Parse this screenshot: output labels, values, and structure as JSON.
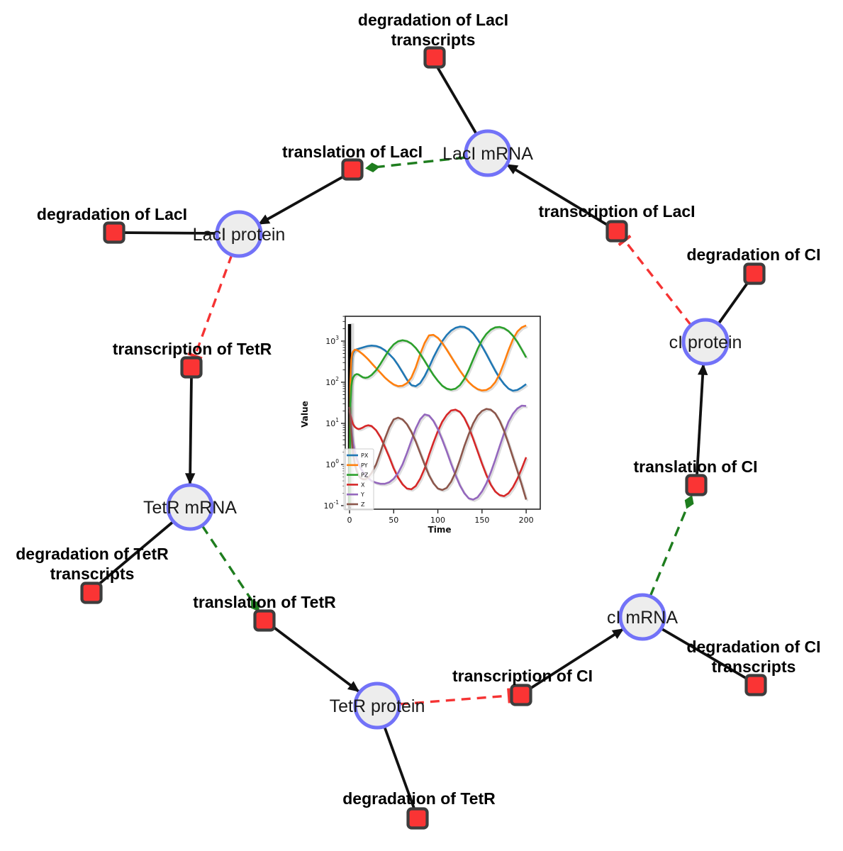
{
  "diagram": {
    "species_labels": {
      "laci_mrna": "LacI mRNA",
      "laci_protein": "LacI protein",
      "tetr_mrna": "TetR mRNA",
      "tetr_protein": "TetR protein",
      "ci_mrna": "cI mRNA",
      "ci_protein": "cI protein"
    },
    "reaction_labels": {
      "deg_laci_transcripts_1": "degradation of LacI",
      "deg_laci_transcripts_2": "transcripts",
      "translation_laci": "translation of LacI",
      "transcription_laci": "transcription of LacI",
      "deg_laci": "degradation of LacI",
      "deg_ci": "degradation of CI",
      "transcription_tetr": "transcription of TetR",
      "deg_tetr_transcripts_1": "degradation of TetR",
      "deg_tetr_transcripts_2": "transcripts",
      "translation_tetr": "translation of TetR",
      "deg_tetr": "degradation of TetR",
      "transcription_ci": "transcription of CI",
      "deg_ci_transcripts_1": "degradation of CI",
      "deg_ci_transcripts_2": "transcripts",
      "translation_ci": "translation of CI"
    },
    "edges": [
      {
        "from": "LacI mRNA",
        "to": "degradation of LacI transcripts",
        "type": "consumption"
      },
      {
        "from": "LacI mRNA",
        "to": "translation of LacI",
        "type": "modifier"
      },
      {
        "from": "translation of LacI",
        "to": "LacI protein",
        "type": "production"
      },
      {
        "from": "LacI protein",
        "to": "degradation of LacI",
        "type": "consumption"
      },
      {
        "from": "LacI protein",
        "to": "transcription of TetR",
        "type": "inhibition"
      },
      {
        "from": "transcription of TetR",
        "to": "TetR mRNA",
        "type": "production"
      },
      {
        "from": "TetR mRNA",
        "to": "degradation of TetR transcripts",
        "type": "consumption"
      },
      {
        "from": "TetR mRNA",
        "to": "translation of TetR",
        "type": "modifier"
      },
      {
        "from": "translation of TetR",
        "to": "TetR protein",
        "type": "production"
      },
      {
        "from": "TetR protein",
        "to": "degradation of TetR",
        "type": "consumption"
      },
      {
        "from": "TetR protein",
        "to": "transcription of CI",
        "type": "inhibition"
      },
      {
        "from": "transcription of CI",
        "to": "cI mRNA",
        "type": "production"
      },
      {
        "from": "cI mRNA",
        "to": "degradation of CI transcripts",
        "type": "consumption"
      },
      {
        "from": "cI mRNA",
        "to": "translation of CI",
        "type": "modifier"
      },
      {
        "from": "translation of CI",
        "to": "cI protein",
        "type": "production"
      },
      {
        "from": "cI protein",
        "to": "degradation of CI",
        "type": "consumption"
      },
      {
        "from": "cI protein",
        "to": "transcription of LacI",
        "type": "inhibition"
      },
      {
        "from": "transcription of LacI",
        "to": "LacI mRNA",
        "type": "production"
      }
    ],
    "colors": {
      "species_fill": "#ededed",
      "species_stroke": "#7272f8",
      "reaction_fill": "#fa3434",
      "reaction_stroke": "#3d3d3d",
      "edge_black": "#111111",
      "edge_green": "#1e7d1e",
      "edge_red": "#f53333"
    }
  },
  "chart_data": {
    "type": "line",
    "title": "",
    "xlabel": "Time",
    "ylabel": "Value",
    "x_ticks": [
      0,
      50,
      100,
      150,
      200
    ],
    "y_scale": "log",
    "y_tick_exponents": [
      -1,
      0,
      1,
      2,
      3
    ],
    "xlim": [
      -5,
      216
    ],
    "ylim": [
      0.08,
      4000
    ],
    "legend_position": "lower left",
    "grid": false,
    "event_line_x": 0,
    "x": [
      0,
      1,
      2,
      3,
      4,
      6,
      8,
      10,
      12,
      15,
      18,
      21,
      25,
      30,
      35,
      40,
      45,
      50,
      55,
      60,
      65,
      70,
      75,
      80,
      85,
      90,
      95,
      100,
      105,
      110,
      115,
      120,
      125,
      130,
      135,
      140,
      145,
      150,
      155,
      160,
      165,
      170,
      175,
      180,
      185,
      190,
      195,
      200
    ],
    "series": [
      {
        "name": "PX",
        "color": "#1f77b4",
        "values": [
          0.1,
          30,
          200,
          420,
          520,
          600,
          630,
          650,
          670,
          700,
          730,
          760,
          780,
          760,
          700,
          600,
          480,
          370,
          260,
          175,
          115,
          85,
          80,
          95,
          140,
          230,
          400,
          650,
          1000,
          1400,
          1800,
          2100,
          2250,
          2200,
          1950,
          1550,
          1100,
          750,
          480,
          300,
          190,
          125,
          90,
          70,
          62,
          65,
          75,
          90
        ]
      },
      {
        "name": "PY",
        "color": "#ff7f0e",
        "values": [
          0.1,
          100,
          350,
          500,
          560,
          620,
          610,
          580,
          540,
          480,
          420,
          360,
          290,
          220,
          170,
          130,
          105,
          88,
          80,
          82,
          95,
          130,
          230,
          480,
          900,
          1380,
          1420,
          1200,
          900,
          620,
          420,
          280,
          190,
          135,
          100,
          80,
          68,
          63,
          65,
          75,
          100,
          160,
          300,
          600,
          1100,
          1700,
          2150,
          2400
        ]
      },
      {
        "name": "PZ",
        "color": "#2ca02c",
        "values": [
          0.1,
          30,
          80,
          110,
          130,
          150,
          158,
          155,
          145,
          132,
          128,
          132,
          150,
          195,
          280,
          420,
          620,
          830,
          990,
          1050,
          1000,
          870,
          680,
          490,
          330,
          220,
          150,
          108,
          82,
          70,
          66,
          70,
          85,
          120,
          200,
          360,
          640,
          1050,
          1500,
          1900,
          2150,
          2200,
          2050,
          1750,
          1350,
          950,
          620,
          400
        ]
      },
      {
        "name": "X",
        "color": "#d62728",
        "values": [
          20,
          16,
          13,
          11,
          9.5,
          8.2,
          7.6,
          7.3,
          7.4,
          7.9,
          8.6,
          9.0,
          8.6,
          6.8,
          4.6,
          2.7,
          1.5,
          0.8,
          0.48,
          0.33,
          0.26,
          0.25,
          0.3,
          0.45,
          0.8,
          1.7,
          3.4,
          6.5,
          11,
          16,
          20.5,
          21.5,
          19,
          13.5,
          8,
          4.2,
          2.1,
          1.05,
          0.55,
          0.32,
          0.22,
          0.18,
          0.17,
          0.2,
          0.28,
          0.45,
          0.8,
          1.5
        ]
      },
      {
        "name": "Y",
        "color": "#9467bd",
        "values": [
          25,
          14,
          8,
          5,
          3.4,
          2.0,
          1.4,
          1.05,
          0.85,
          0.66,
          0.55,
          0.47,
          0.4,
          0.36,
          0.34,
          0.34,
          0.37,
          0.45,
          0.62,
          1.0,
          1.9,
          3.8,
          7.5,
          12.5,
          16.5,
          15.5,
          11.5,
          7.2,
          4.0,
          2.1,
          1.05,
          0.55,
          0.31,
          0.2,
          0.15,
          0.14,
          0.16,
          0.22,
          0.35,
          0.65,
          1.3,
          2.8,
          5.8,
          11,
          17,
          23,
          27,
          26.5
        ]
      },
      {
        "name": "Z",
        "color": "#8c564b",
        "values": [
          25,
          12,
          6,
          3.2,
          1.9,
          1.0,
          0.7,
          0.55,
          0.48,
          0.44,
          0.44,
          0.48,
          0.62,
          1.0,
          2.0,
          4.2,
          8.0,
          12.5,
          13.8,
          12.5,
          9.5,
          6.2,
          3.6,
          1.9,
          1.0,
          0.55,
          0.35,
          0.26,
          0.24,
          0.27,
          0.38,
          0.65,
          1.3,
          2.8,
          5.5,
          10,
          15.5,
          20,
          22.5,
          21.5,
          17.5,
          11.5,
          6.5,
          3.2,
          1.5,
          0.7,
          0.32,
          0.14
        ]
      }
    ]
  }
}
